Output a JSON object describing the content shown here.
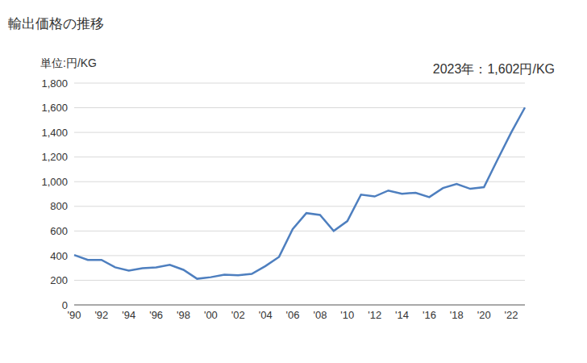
{
  "chart_data": {
    "type": "line",
    "title": "輸出価格の推移",
    "y_label": "単位:円/KG",
    "annotation": "2023年：1,602円/KG",
    "categories": [
      "'90",
      null,
      "'92",
      null,
      "'94",
      null,
      "'96",
      null,
      "'98",
      null,
      "'00",
      null,
      "'02",
      null,
      "'04",
      null,
      "'06",
      null,
      "'08",
      null,
      "'10",
      null,
      "'12",
      null,
      "'14",
      null,
      "'16",
      null,
      "'18",
      null,
      "'20",
      null,
      "'22",
      null
    ],
    "values": [
      405,
      365,
      365,
      305,
      278,
      298,
      305,
      325,
      285,
      212,
      225,
      245,
      240,
      252,
      315,
      390,
      615,
      745,
      730,
      600,
      680,
      895,
      880,
      928,
      902,
      910,
      875,
      948,
      982,
      942,
      955,
      1180,
      1400,
      1602
    ],
    "color": "#4e7fbf",
    "ylim": [
      0,
      1800
    ],
    "yticks": [
      0,
      200,
      400,
      600,
      800,
      {
        "value": 1000,
        "label": "1,000"
      },
      {
        "value": 1200,
        "label": "1,200"
      },
      {
        "value": 1400,
        "label": "1,400"
      },
      {
        "value": 1600,
        "label": "1,600"
      },
      {
        "value": 1800,
        "label": "1,800"
      }
    ],
    "grid": true
  }
}
